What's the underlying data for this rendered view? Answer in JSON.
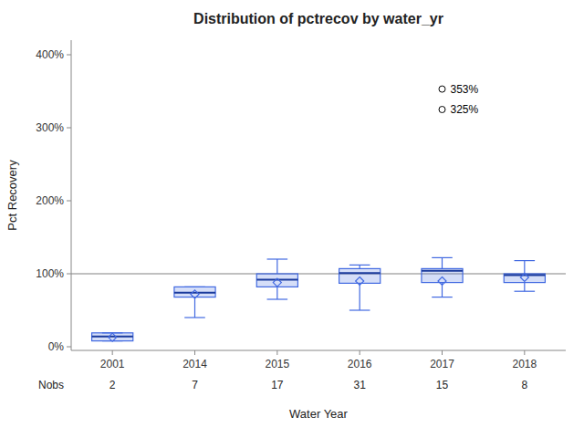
{
  "chart_data": {
    "type": "box",
    "title": "Distribution of pctrecov by water_yr",
    "x_label": "Water Year",
    "y_label": "Pct Recovery",
    "categories": [
      "2001",
      "2014",
      "2015",
      "2016",
      "2017",
      "2018"
    ],
    "q1": [
      0.08,
      0.68,
      0.82,
      0.87,
      0.88,
      0.88
    ],
    "median": [
      0.14,
      0.74,
      0.92,
      1.01,
      1.04,
      0.98
    ],
    "q3": [
      0.19,
      0.82,
      1.0,
      1.07,
      1.07,
      1.0
    ],
    "whislo": [
      0.08,
      0.4,
      0.65,
      0.5,
      0.68,
      0.76
    ],
    "whishi": [
      0.19,
      0.82,
      1.2,
      1.12,
      1.22,
      1.18
    ],
    "mean": [
      0.13,
      0.72,
      0.88,
      0.9,
      0.9,
      0.95
    ],
    "fliers": [
      [],
      [],
      [],
      [],
      [
        3.53,
        3.25
      ],
      []
    ],
    "nobs_label": "Nobs",
    "nobs": [
      2,
      7,
      17,
      31,
      15,
      8
    ],
    "reference_line": 1.0,
    "annotations": [
      {
        "category": "2017",
        "value": 3.53,
        "label": "353%"
      },
      {
        "category": "2017",
        "value": 3.25,
        "label": "325%"
      }
    ],
    "ylim": [
      -0.05,
      4.2
    ],
    "yticks": [
      {
        "value": 0.0,
        "label": "0%"
      },
      {
        "value": 1.0,
        "label": "100%"
      },
      {
        "value": 2.0,
        "label": "200%"
      },
      {
        "value": 3.0,
        "label": "300%"
      },
      {
        "value": 4.0,
        "label": "400%"
      }
    ],
    "color": "#4169e1",
    "grid": false
  }
}
